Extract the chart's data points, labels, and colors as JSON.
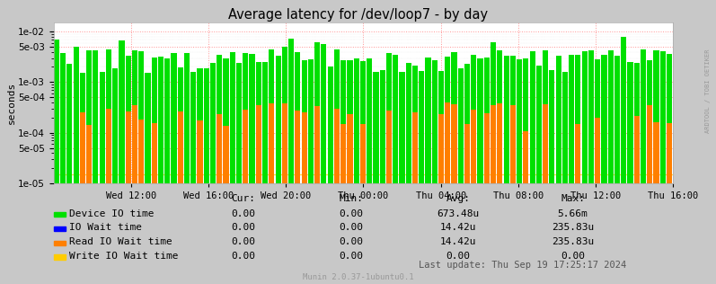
{
  "title": "Average latency for /dev/loop7 - by day",
  "ylabel": "seconds",
  "background_color": "#c8c8c8",
  "plot_bg_color": "#ffffff",
  "x_ticks_labels": [
    "Wed 12:00",
    "Wed 16:00",
    "Wed 20:00",
    "Thu 00:00",
    "Thu 04:00",
    "Thu 08:00",
    "Thu 12:00",
    "Thu 16:00"
  ],
  "ylim_min": 1e-05,
  "ylim_max": 0.01,
  "series": [
    {
      "name": "Device IO time",
      "color": "#00e000"
    },
    {
      "name": "IO Wait time",
      "color": "#0000ff"
    },
    {
      "name": "Read IO Wait time",
      "color": "#ff7f00"
    },
    {
      "name": "Write IO Wait time",
      "color": "#ffcc00"
    }
  ],
  "legend_cols": [
    "Cur:",
    "Min:",
    "Avg:",
    "Max:"
  ],
  "legend_rows": [
    [
      "0.00",
      "0.00",
      "673.48u",
      "5.66m"
    ],
    [
      "0.00",
      "0.00",
      "14.42u",
      "235.83u"
    ],
    [
      "0.00",
      "0.00",
      "14.42u",
      "235.83u"
    ],
    [
      "0.00",
      "0.00",
      "0.00",
      "0.00"
    ]
  ],
  "footer": "Munin 2.0.37-1ubuntu0.1",
  "last_update": "Last update: Thu Sep 19 17:25:17 2024",
  "right_label": "ARDTOOL / TOBI OETIKER",
  "dotted_h_lines": [
    0.01,
    0.005,
    0.001,
    0.0005,
    0.0001,
    5e-05,
    1e-05
  ],
  "total_hours": 32,
  "num_bars": 95,
  "seed": 12
}
